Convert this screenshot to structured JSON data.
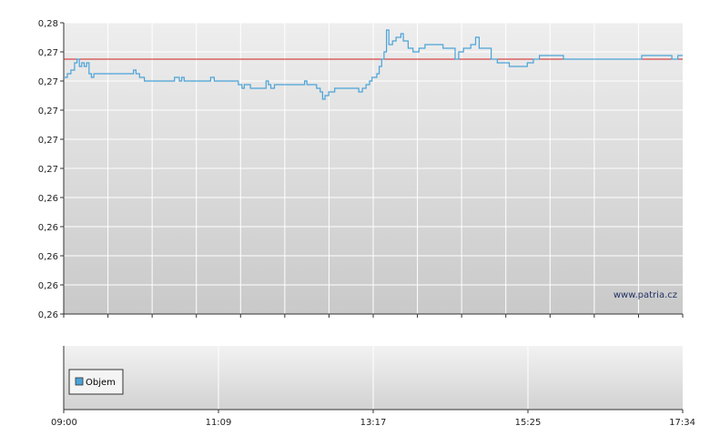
{
  "watermark": "www.patria.cz",
  "chart_data": [
    {
      "type": "line",
      "name": "price",
      "title": "",
      "xlabel": "",
      "ylabel": "",
      "y_tick_labels": [
        "0,26",
        "0,26",
        "0,26",
        "0,26",
        "0,26",
        "0,27",
        "0,27",
        "0,27",
        "0,27",
        "0,27",
        "0,28"
      ],
      "ylim": [
        0.26,
        0.268
      ],
      "xlim_minutes": [
        540,
        1054
      ],
      "reference_line": {
        "value": 0.267,
        "color": "#d02020"
      },
      "series": [
        {
          "color": "#4aa3d8",
          "points": [
            [
              540,
              0.2665
            ],
            [
              543,
              0.2666
            ],
            [
              546,
              0.2667
            ],
            [
              549,
              0.2669
            ],
            [
              551,
              0.267
            ],
            [
              553,
              0.2668
            ],
            [
              555,
              0.2669
            ],
            [
              557,
              0.2668
            ],
            [
              559,
              0.2669
            ],
            [
              561,
              0.2666
            ],
            [
              563,
              0.2665
            ],
            [
              565,
              0.2666
            ],
            [
              570,
              0.2666
            ],
            [
              580,
              0.2666
            ],
            [
              590,
              0.2666
            ],
            [
              595,
              0.2666
            ],
            [
              598,
              0.2667
            ],
            [
              600,
              0.2666
            ],
            [
              603,
              0.2665
            ],
            [
              607,
              0.2664
            ],
            [
              615,
              0.2664
            ],
            [
              625,
              0.2664
            ],
            [
              630,
              0.2664
            ],
            [
              632,
              0.2665
            ],
            [
              636,
              0.2664
            ],
            [
              638,
              0.2665
            ],
            [
              640,
              0.2664
            ],
            [
              650,
              0.2664
            ],
            [
              660,
              0.2664
            ],
            [
              662,
              0.2665
            ],
            [
              665,
              0.2664
            ],
            [
              668,
              0.2664
            ],
            [
              675,
              0.2664
            ],
            [
              680,
              0.2664
            ],
            [
              685,
              0.2663
            ],
            [
              688,
              0.2662
            ],
            [
              690,
              0.2663
            ],
            [
              693,
              0.2663
            ],
            [
              695,
              0.2662
            ],
            [
              700,
              0.2662
            ],
            [
              705,
              0.2662
            ],
            [
              708,
              0.2664
            ],
            [
              710,
              0.2663
            ],
            [
              712,
              0.2662
            ],
            [
              715,
              0.2663
            ],
            [
              720,
              0.2663
            ],
            [
              725,
              0.2663
            ],
            [
              730,
              0.2663
            ],
            [
              735,
              0.2663
            ],
            [
              740,
              0.2664
            ],
            [
              742,
              0.2663
            ],
            [
              745,
              0.2663
            ],
            [
              750,
              0.2662
            ],
            [
              753,
              0.2661
            ],
            [
              755,
              0.2659
            ],
            [
              757,
              0.266
            ],
            [
              760,
              0.2661
            ],
            [
              762,
              0.2661
            ],
            [
              765,
              0.2662
            ],
            [
              768,
              0.2662
            ],
            [
              770,
              0.2662
            ],
            [
              775,
              0.2662
            ],
            [
              780,
              0.2662
            ],
            [
              785,
              0.2661
            ],
            [
              788,
              0.2662
            ],
            [
              791,
              0.2663
            ],
            [
              794,
              0.2664
            ],
            [
              796,
              0.2665
            ],
            [
              800,
              0.2666
            ],
            [
              802,
              0.2668
            ],
            [
              804,
              0.267
            ],
            [
              806,
              0.2672
            ],
            [
              808,
              0.2678
            ],
            [
              810,
              0.2674
            ],
            [
              813,
              0.2675
            ],
            [
              816,
              0.2676
            ],
            [
              820,
              0.2677
            ],
            [
              822,
              0.2675
            ],
            [
              826,
              0.2673
            ],
            [
              830,
              0.2672
            ],
            [
              835,
              0.2673
            ],
            [
              840,
              0.2674
            ],
            [
              845,
              0.2674
            ],
            [
              850,
              0.2674
            ],
            [
              855,
              0.2673
            ],
            [
              860,
              0.2673
            ],
            [
              865,
              0.267
            ],
            [
              868,
              0.2672
            ],
            [
              872,
              0.2673
            ],
            [
              878,
              0.2674
            ],
            [
              882,
              0.2676
            ],
            [
              885,
              0.2673
            ],
            [
              890,
              0.2673
            ],
            [
              895,
              0.267
            ],
            [
              900,
              0.2669
            ],
            [
              905,
              0.2669
            ],
            [
              910,
              0.2668
            ],
            [
              915,
              0.2668
            ],
            [
              920,
              0.2668
            ],
            [
              925,
              0.2669
            ],
            [
              930,
              0.267
            ],
            [
              935,
              0.2671
            ],
            [
              940,
              0.2671
            ],
            [
              945,
              0.2671
            ],
            [
              950,
              0.2671
            ],
            [
              955,
              0.267
            ],
            [
              960,
              0.267
            ],
            [
              965,
              0.267
            ],
            [
              970,
              0.267
            ],
            [
              975,
              0.267
            ],
            [
              980,
              0.267
            ],
            [
              985,
              0.267
            ],
            [
              990,
              0.267
            ],
            [
              995,
              0.267
            ],
            [
              1000,
              0.267
            ],
            [
              1005,
              0.267
            ],
            [
              1010,
              0.267
            ],
            [
              1015,
              0.267
            ],
            [
              1020,
              0.2671
            ],
            [
              1025,
              0.2671
            ],
            [
              1030,
              0.2671
            ],
            [
              1035,
              0.2671
            ],
            [
              1040,
              0.2671
            ],
            [
              1045,
              0.267
            ],
            [
              1050,
              0.2671
            ],
            [
              1054,
              0.2671
            ]
          ]
        }
      ]
    },
    {
      "type": "bar",
      "name": "volume",
      "title": "",
      "legend": [
        {
          "label": "Objem",
          "color": "#4aa3d8"
        }
      ],
      "legend_placement": "left",
      "x_tick_labels": [
        "09:00",
        "11:09",
        "13:17",
        "15:25",
        "17:34"
      ],
      "values": []
    }
  ]
}
